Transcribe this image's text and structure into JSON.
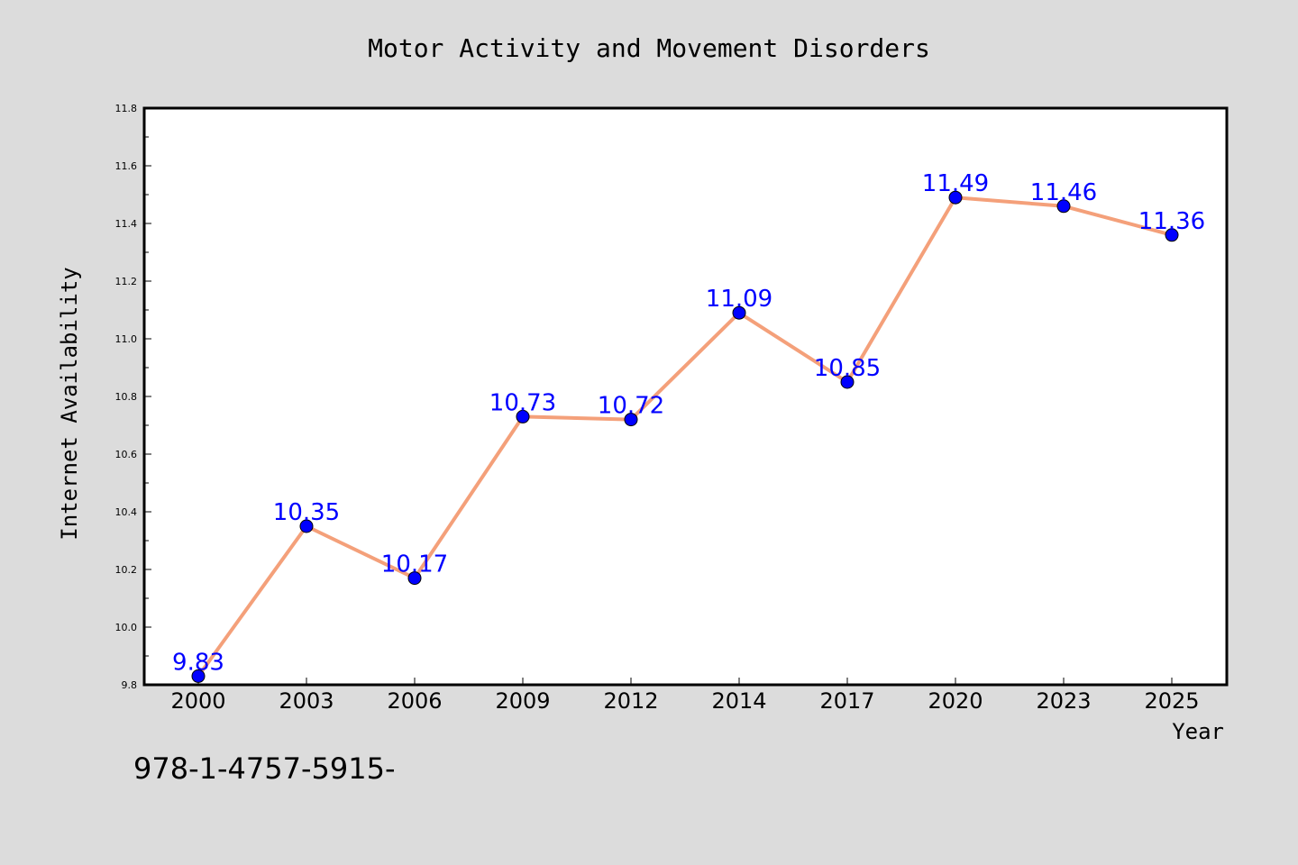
{
  "chart_data": {
    "type": "line",
    "title": "Motor Activity and Movement Disorders",
    "xlabel": "Year",
    "ylabel": "Internet Availability",
    "categories": [
      "2000",
      "2003",
      "2006",
      "2009",
      "2012",
      "2014",
      "2017",
      "2020",
      "2023",
      "2025"
    ],
    "series": [
      {
        "values": [
          9.83,
          10.35,
          10.17,
          10.73,
          10.72,
          11.09,
          10.85,
          11.49,
          11.46,
          11.36
        ],
        "data_labels": [
          "9.83",
          "10.35",
          "10.17",
          "10.73",
          "10.72",
          "11.09",
          "10.85",
          "11.49",
          "11.46",
          "11.36"
        ],
        "line_color": "#f4a07a",
        "marker_color": "#0000ff",
        "label_color": "#0000ff"
      }
    ],
    "ylim": [
      9.8,
      11.8
    ],
    "yticks": [
      "9.8",
      "10.0",
      "10.2",
      "10.4",
      "10.6",
      "10.8",
      "11.0",
      "11.2",
      "11.4",
      "11.6",
      "11.8"
    ],
    "grid": false,
    "legend": "none"
  },
  "footer": {
    "text": "978-1-4757-5915-"
  },
  "colors": {
    "background": "#dcdcdc",
    "plot_background": "#ffffff"
  }
}
